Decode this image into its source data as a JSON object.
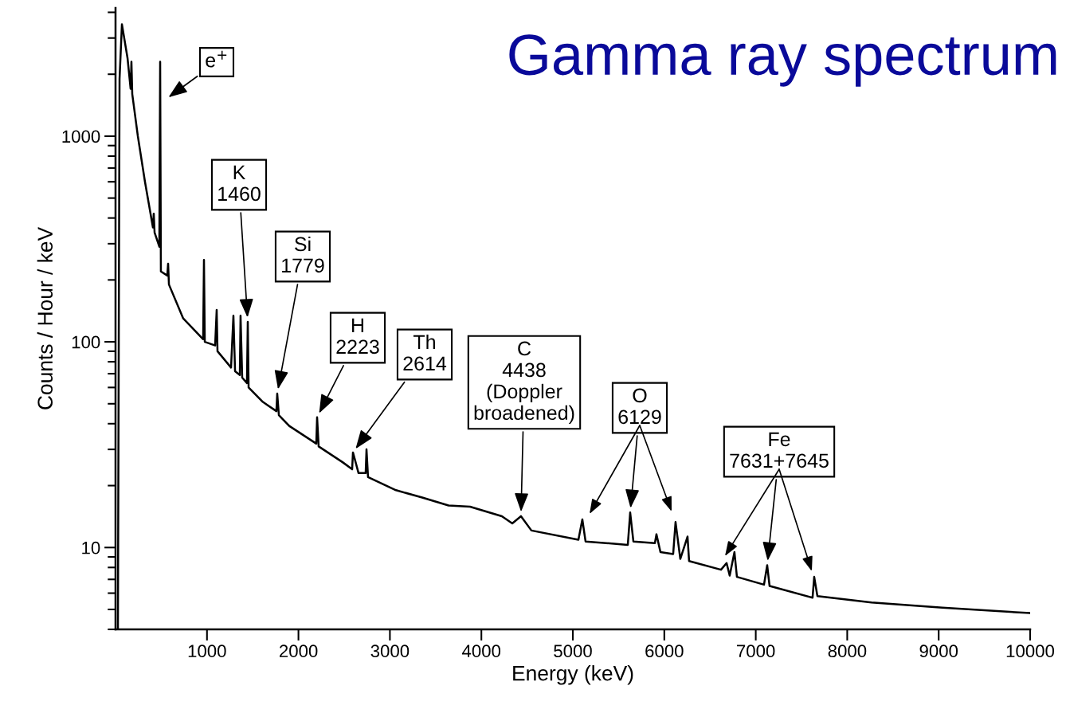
{
  "chart_data": {
    "type": "line",
    "title": "Gamma ray spectrum",
    "xlabel": "Energy (keV)",
    "ylabel": "Counts / Hour / keV",
    "log": "y",
    "grid": false,
    "legend": false,
    "marker": "none",
    "line_style": "solid",
    "xlim": [
      0,
      10000
    ],
    "xticks": [
      1000,
      2000,
      3000,
      4000,
      5000,
      6000,
      7000,
      8000,
      9000,
      10000
    ],
    "ylim": [
      4,
      4200
    ],
    "yticks": [
      10,
      100,
      1000
    ],
    "x": [
      26,
      44,
      70,
      131,
      165,
      174,
      183,
      244,
      322,
      409,
      418,
      427,
      479,
      488,
      496,
      566,
      575,
      584,
      740,
      958,
      967,
      976,
      1089,
      1106,
      1115,
      1263,
      1289,
      1307,
      1359,
      1367,
      1385,
      1437,
      1446,
      1455,
      1611,
      1759,
      1768,
      1786,
      1899,
      2195,
      2204,
      2221,
      2482,
      2587,
      2596,
      2657,
      2735,
      2744,
      2761,
      3066,
      3353,
      3641,
      3876,
      4224,
      4338,
      4433,
      4547,
      5061,
      5104,
      5139,
      5601,
      5627,
      5662,
      5897,
      5914,
      5958,
      6097,
      6123,
      6175,
      6254,
      6271,
      6620,
      6681,
      6715,
      6767,
      6794,
      7090,
      7125,
      7151,
      7621,
      7639,
      7674,
      8266,
      9041,
      10000
    ],
    "series": [
      {
        "color": "#000000",
        "values": [
          4,
          1900,
          3500,
          2400,
          1700,
          2300,
          1600,
          1000,
          600,
          360,
          420,
          340,
          290,
          2300,
          220,
          210,
          240,
          190,
          130,
          103,
          250,
          100,
          96,
          143,
          90,
          75,
          134,
          72,
          69,
          134,
          67,
          63,
          125,
          60,
          51,
          46,
          56,
          44,
          39,
          32,
          43,
          31,
          26,
          24,
          29,
          23,
          23,
          30,
          22,
          19,
          17.5,
          16,
          15.8,
          14.2,
          13.1,
          14.2,
          12.1,
          10.9,
          13.7,
          10.7,
          10.3,
          14.8,
          10.7,
          10.5,
          11.6,
          9.5,
          9.3,
          13.3,
          8.8,
          11.3,
          8.6,
          7.8,
          8.4,
          7.3,
          9.5,
          7.2,
          6.6,
          8.2,
          6.5,
          5.7,
          7.2,
          5.8,
          5.4,
          5.1,
          4.8
        ]
      }
    ],
    "annotations": [
      {
        "text": "e$^{+}$",
        "x": 540,
        "y": 1500
      },
      {
        "text": "K\n1460",
        "x": 1446,
        "y": 125
      },
      {
        "text": "Si\n1779",
        "x": 1768,
        "y": 56
      },
      {
        "text": "H\n2223",
        "x": 2204,
        "y": 43
      },
      {
        "text": "Th\n2614",
        "x": 2596,
        "y": 29
      },
      {
        "text": "C\n4438\n(Doppler\nbroadened)",
        "x": 4433,
        "y": 14.2
      },
      {
        "text": "O\n6129",
        "x": 5627,
        "y": 14.8
      },
      {
        "text": "Fe\n7631+7645",
        "x": 7125,
        "y": 8.2
      }
    ]
  }
}
